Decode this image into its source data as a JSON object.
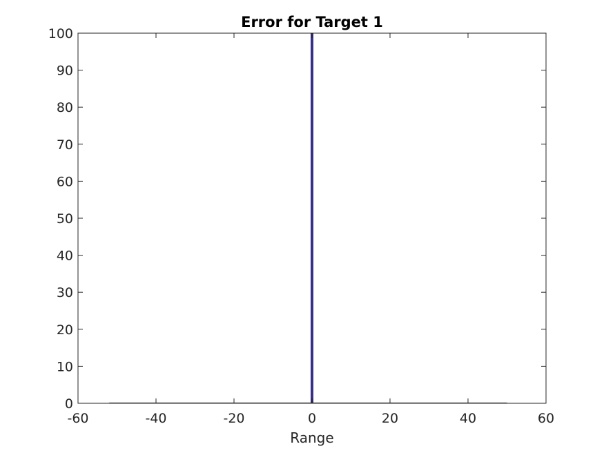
{
  "chart_data": {
    "type": "bar",
    "title": "Error for Target 1",
    "xlabel": "Range",
    "ylabel": "",
    "xlim": [
      -60,
      60
    ],
    "ylim": [
      0,
      100
    ],
    "xticks": [
      -60,
      -40,
      -20,
      0,
      20,
      40,
      60
    ],
    "yticks": [
      0,
      10,
      20,
      30,
      40,
      50,
      60,
      70,
      80,
      90,
      100
    ],
    "grid": false,
    "bar_width": 1,
    "x": [
      0
    ],
    "values": [
      100
    ],
    "colors": {
      "bar_fill": "#3b3299",
      "bar_edge": "#1f1a66",
      "axis": "#262626",
      "baseline": "#262626"
    },
    "baseline_range": [
      -52,
      50
    ]
  }
}
